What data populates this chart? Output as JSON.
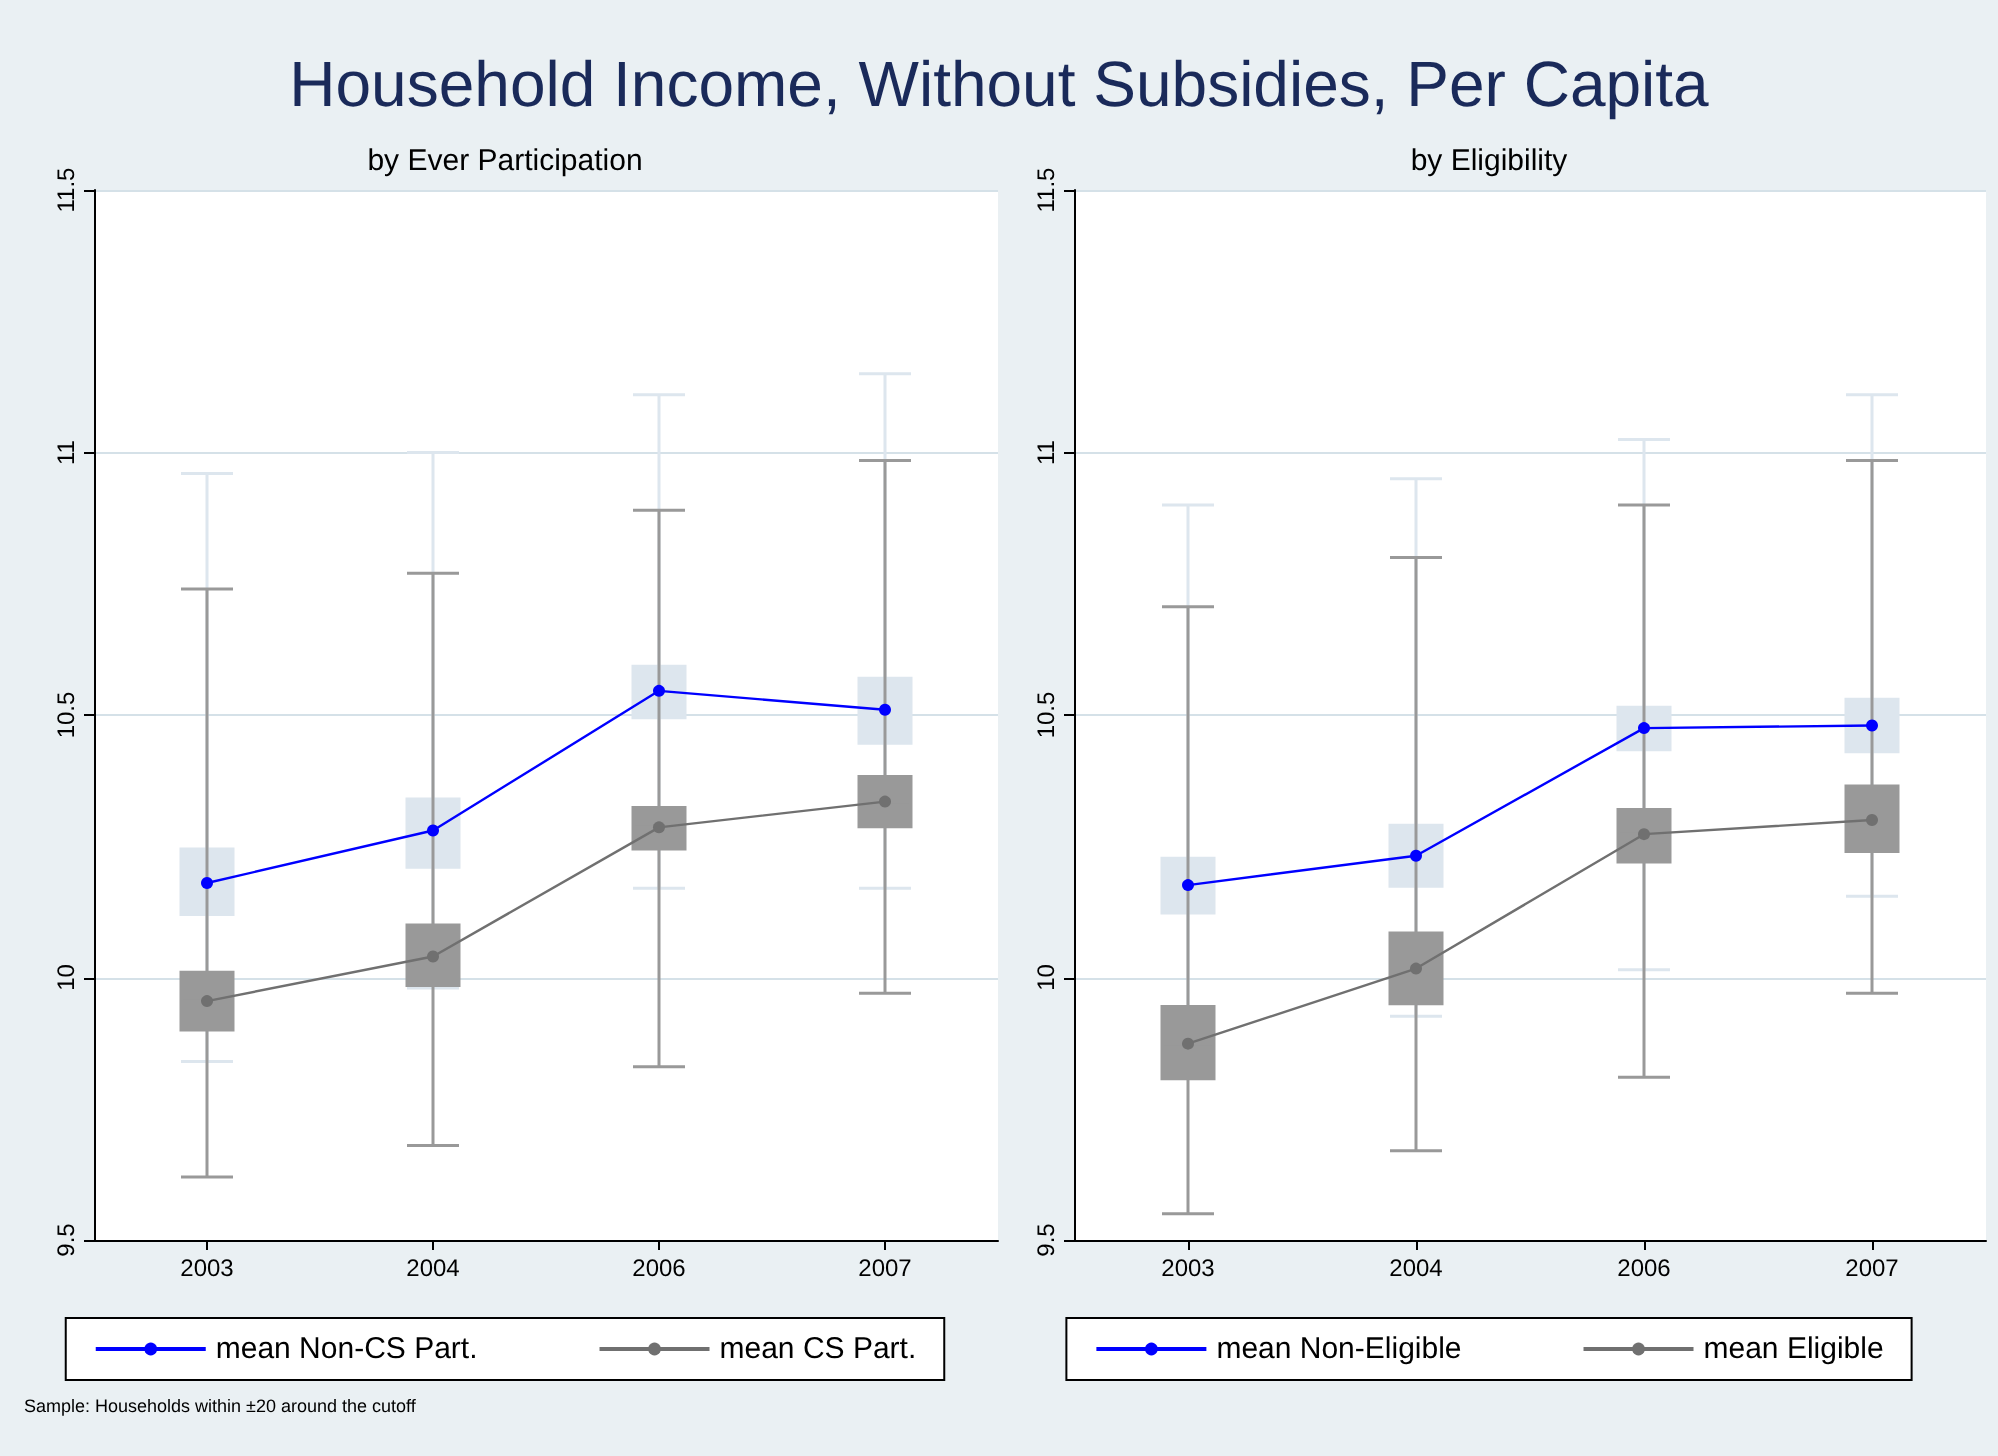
{
  "chart_data": [
    {
      "type": "line",
      "title": "Household Income, Without Subsidies, Per Capita",
      "subtitle": "by Ever Participation",
      "categories": [
        "2003",
        "2004",
        "2006",
        "2007"
      ],
      "ylim": [
        9.5,
        11.5
      ],
      "yticks": [
        9.5,
        10,
        10.5,
        11,
        11.5
      ],
      "grid": "y",
      "legend": "bottom",
      "marker": "circle",
      "annotations": [
        "Sample: Households within ±20 around the cutoff"
      ],
      "series": [
        {
          "type": "box",
          "color": "#dde6ee",
          "boxes": [
            {
              "low": 9.84,
              "q1": 10.12,
              "median": 10.18,
              "q3": 10.245,
              "high": 10.96
            },
            {
              "low": 9.98,
              "q1": 10.21,
              "median": 10.28,
              "q3": 10.34,
              "high": 11.0
            },
            {
              "low": 10.17,
              "q1": 10.495,
              "median": 10.546,
              "q3": 10.593,
              "high": 11.11
            },
            {
              "low": 10.17,
              "q1": 10.446,
              "median": 10.51,
              "q3": 10.57,
              "high": 11.15
            }
          ]
        },
        {
          "type": "box",
          "color": "#999999",
          "boxes": [
            {
              "low": 9.62,
              "q1": 9.9,
              "median": 9.955,
              "q3": 10.01,
              "high": 10.74
            },
            {
              "low": 9.68,
              "q1": 9.985,
              "median": 10.04,
              "q3": 10.1,
              "high": 10.77
            },
            {
              "low": 9.83,
              "q1": 10.245,
              "median": 10.286,
              "q3": 10.324,
              "high": 10.89
            },
            {
              "low": 9.97,
              "q1": 10.287,
              "median": 10.335,
              "q3": 10.383,
              "high": 10.985
            }
          ]
        },
        {
          "name": "mean Non-CS Part.",
          "color": "#0000ff",
          "values": [
            10.18,
            10.28,
            10.546,
            10.51
          ]
        },
        {
          "name": "mean CS Part.",
          "color": "#707070",
          "values": [
            9.955,
            10.04,
            10.286,
            10.335
          ]
        }
      ]
    },
    {
      "type": "line",
      "subtitle": "by Eligibility",
      "categories": [
        "2003",
        "2004",
        "2006",
        "2007"
      ],
      "ylim": [
        9.5,
        11.5
      ],
      "yticks": [
        9.5,
        10,
        10.5,
        11,
        11.5
      ],
      "grid": "y",
      "legend": "bottom",
      "marker": "circle",
      "series": [
        {
          "type": "box",
          "color": "#dde6ee",
          "boxes": [
            {
              "low": 9.85,
              "q1": 10.123,
              "median": 10.176,
              "q3": 10.227,
              "high": 10.9
            },
            {
              "low": 9.926,
              "q1": 10.174,
              "median": 10.232,
              "q3": 10.29,
              "high": 10.95
            },
            {
              "low": 10.015,
              "q1": 10.434,
              "median": 10.475,
              "q3": 10.515,
              "high": 11.025
            },
            {
              "low": 10.155,
              "q1": 10.43,
              "median": 10.48,
              "q3": 10.53,
              "high": 11.11
            }
          ]
        },
        {
          "type": "box",
          "color": "#999999",
          "boxes": [
            {
              "low": 9.55,
              "q1": 9.807,
              "median": 9.874,
              "q3": 9.945,
              "high": 10.706
            },
            {
              "low": 9.67,
              "q1": 9.95,
              "median": 10.017,
              "q3": 10.085,
              "high": 10.8
            },
            {
              "low": 9.81,
              "q1": 10.22,
              "median": 10.273,
              "q3": 10.32,
              "high": 10.9
            },
            {
              "low": 9.97,
              "q1": 10.24,
              "median": 10.3,
              "q3": 10.365,
              "high": 10.985
            }
          ]
        },
        {
          "name": "mean Non-Eligible",
          "color": "#0000ff",
          "values": [
            10.176,
            10.232,
            10.475,
            10.48
          ]
        },
        {
          "name": "mean Eligible",
          "color": "#707070",
          "values": [
            9.874,
            10.017,
            10.273,
            10.3
          ]
        }
      ]
    }
  ]
}
